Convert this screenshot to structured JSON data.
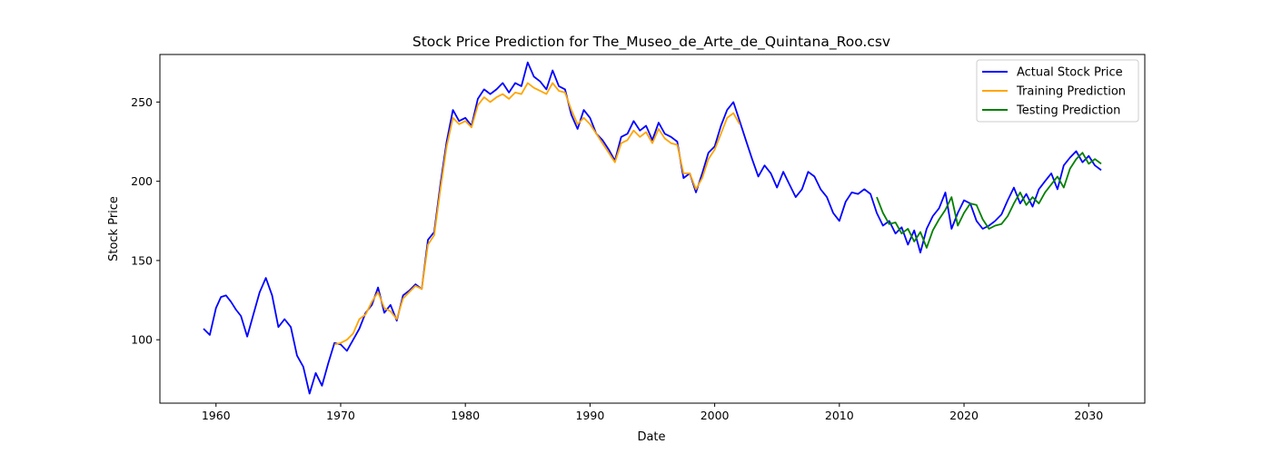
{
  "chart_data": {
    "type": "line",
    "title": "Stock Price Prediction for The_Museo_de_Arte_de_Quintana_Roo.csv",
    "xlabel": "Date",
    "ylabel": "Stock Price",
    "xlim": [
      1955.5,
      2034.5
    ],
    "ylim": [
      60,
      280
    ],
    "x_ticks": [
      "1960",
      "1970",
      "1980",
      "1990",
      "2000",
      "2010",
      "2020",
      "2030"
    ],
    "y_ticks": [
      "100",
      "150",
      "200",
      "250"
    ],
    "legend_position": "top-right",
    "grid": false,
    "series": [
      {
        "name": "Actual Stock Price",
        "color": "#0000ff",
        "x": [
          1959.0,
          1959.5,
          1960.0,
          1960.4,
          1960.8,
          1961.2,
          1961.6,
          1962.0,
          1962.5,
          1963.0,
          1963.5,
          1964.0,
          1964.5,
          1965.0,
          1965.5,
          1966.0,
          1966.5,
          1967.0,
          1967.5,
          1968.0,
          1968.5,
          1969.0,
          1969.5,
          1970.0,
          1970.5,
          1971.0,
          1971.5,
          1972.0,
          1972.5,
          1973.0,
          1973.5,
          1974.0,
          1974.5,
          1975.0,
          1975.5,
          1976.0,
          1976.5,
          1977.0,
          1977.5,
          1978.0,
          1978.5,
          1979.0,
          1979.5,
          1980.0,
          1980.5,
          1981.0,
          1981.5,
          1982.0,
          1982.5,
          1983.0,
          1983.5,
          1984.0,
          1984.5,
          1985.0,
          1985.5,
          1986.0,
          1986.5,
          1987.0,
          1987.5,
          1988.0,
          1988.5,
          1989.0,
          1989.5,
          1990.0,
          1990.5,
          1991.0,
          1991.5,
          1992.0,
          1992.5,
          1993.0,
          1993.5,
          1994.0,
          1994.5,
          1995.0,
          1995.5,
          1996.0,
          1996.5,
          1997.0,
          1997.5,
          1998.0,
          1998.5,
          1999.0,
          1999.5,
          2000.0,
          2000.5,
          2001.0,
          2001.5,
          2002.0,
          2002.5,
          2003.0,
          2003.5,
          2004.0,
          2004.5,
          2005.0,
          2005.5,
          2006.0,
          2006.5,
          2007.0,
          2007.5,
          2008.0,
          2008.5,
          2009.0,
          2009.5,
          2010.0,
          2010.5,
          2011.0,
          2011.5,
          2012.0,
          2012.5,
          2013.0,
          2013.5,
          2014.0,
          2014.5,
          2015.0,
          2015.5,
          2016.0,
          2016.5,
          2017.0,
          2017.5,
          2018.0,
          2018.5,
          2019.0,
          2019.5,
          2020.0,
          2020.5,
          2021.0,
          2021.5,
          2022.0,
          2022.5,
          2023.0,
          2023.5,
          2024.0,
          2024.5,
          2025.0,
          2025.5,
          2026.0,
          2026.5,
          2027.0,
          2027.5,
          2028.0,
          2028.5,
          2029.0,
          2029.5,
          2030.0,
          2030.5,
          2031.0
        ],
        "values": [
          107,
          103,
          120,
          127,
          128,
          124,
          119,
          115,
          102,
          116,
          130,
          139,
          128,
          108,
          113,
          108,
          90,
          83,
          66,
          79,
          71,
          85,
          98,
          97,
          93,
          100,
          107,
          117,
          122,
          133,
          117,
          122,
          112,
          128,
          131,
          135,
          132,
          163,
          168,
          198,
          225,
          245,
          238,
          240,
          235,
          252,
          258,
          255,
          258,
          262,
          256,
          262,
          260,
          275,
          266,
          263,
          258,
          270,
          260,
          258,
          242,
          233,
          245,
          240,
          230,
          226,
          220,
          213,
          228,
          230,
          238,
          232,
          235,
          226,
          237,
          230,
          228,
          225,
          202,
          205,
          193,
          205,
          218,
          222,
          235,
          245,
          250,
          238,
          226,
          214,
          203,
          210,
          205,
          196,
          206,
          198,
          190,
          195,
          206,
          203,
          195,
          190,
          180,
          175,
          187,
          193,
          192,
          195,
          192,
          180,
          172,
          175,
          167,
          171,
          160,
          169,
          155,
          170,
          178,
          183,
          193,
          170,
          180,
          188,
          186,
          175,
          170,
          172,
          175,
          179,
          188,
          196,
          186,
          192,
          184,
          195,
          200,
          205,
          195,
          210,
          215,
          219,
          212,
          216,
          210,
          207
        ]
      },
      {
        "name": "Training Prediction",
        "color": "#ffa500",
        "x": [
          1969.5,
          1970.0,
          1970.5,
          1971.0,
          1971.5,
          1972.0,
          1972.5,
          1973.0,
          1973.5,
          1974.0,
          1974.5,
          1975.0,
          1975.5,
          1976.0,
          1976.5,
          1977.0,
          1977.5,
          1978.0,
          1978.5,
          1979.0,
          1979.5,
          1980.0,
          1980.5,
          1981.0,
          1981.5,
          1982.0,
          1982.5,
          1983.0,
          1983.5,
          1984.0,
          1984.5,
          1985.0,
          1985.5,
          1986.0,
          1986.5,
          1987.0,
          1987.5,
          1988.0,
          1988.5,
          1989.0,
          1989.5,
          1990.0,
          1990.5,
          1991.0,
          1991.5,
          1992.0,
          1992.5,
          1993.0,
          1993.5,
          1994.0,
          1994.5,
          1995.0,
          1995.5,
          1996.0,
          1996.5,
          1997.0,
          1997.5,
          1998.0,
          1998.5,
          1999.0,
          1999.5,
          2000.0,
          2000.5,
          2001.0,
          2001.5,
          2002.0
        ],
        "values": [
          97,
          98,
          100,
          104,
          113,
          116,
          124,
          130,
          120,
          118,
          113,
          126,
          130,
          134,
          132,
          160,
          166,
          195,
          222,
          240,
          236,
          238,
          234,
          248,
          253,
          250,
          253,
          255,
          252,
          256,
          255,
          262,
          259,
          257,
          255,
          262,
          257,
          256,
          245,
          236,
          240,
          236,
          230,
          224,
          218,
          212,
          224,
          226,
          232,
          228,
          231,
          224,
          233,
          227,
          224,
          223,
          205,
          205,
          195,
          202,
          214,
          220,
          230,
          240,
          243,
          236
        ]
      },
      {
        "name": "Testing Prediction",
        "color": "#008000",
        "x": [
          2013.0,
          2013.5,
          2014.0,
          2014.5,
          2015.0,
          2015.5,
          2016.0,
          2016.5,
          2017.0,
          2017.5,
          2018.0,
          2018.5,
          2019.0,
          2019.5,
          2020.0,
          2020.5,
          2021.0,
          2021.5,
          2022.0,
          2022.5,
          2023.0,
          2023.5,
          2024.0,
          2024.5,
          2025.0,
          2025.5,
          2026.0,
          2026.5,
          2027.0,
          2027.5,
          2028.0,
          2028.5,
          2029.0,
          2029.5,
          2030.0,
          2030.5,
          2031.0
        ],
        "values": [
          190,
          180,
          173,
          174,
          167,
          170,
          162,
          168,
          158,
          169,
          176,
          182,
          190,
          172,
          180,
          186,
          185,
          176,
          170,
          172,
          173,
          178,
          186,
          193,
          185,
          190,
          186,
          193,
          198,
          203,
          196,
          208,
          214,
          218,
          211,
          214,
          211
        ]
      }
    ]
  }
}
